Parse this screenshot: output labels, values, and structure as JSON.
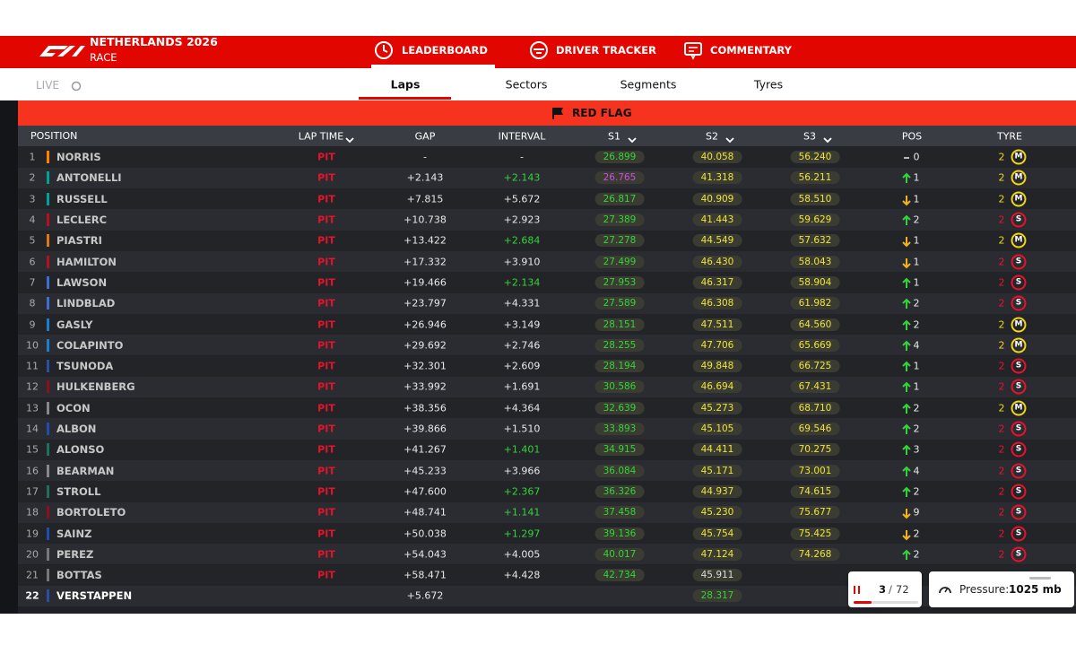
{
  "header": {
    "event": "NETHERLANDS 2026",
    "session": "RACE",
    "tabs": [
      "LEADERBOARD",
      "DRIVER TRACKER",
      "COMMENTARY"
    ]
  },
  "subnav": {
    "live": "LIVE",
    "tabs": [
      "Laps",
      "Sectors",
      "Segments",
      "Tyres"
    ]
  },
  "banner": "RED FLAG",
  "table": {
    "columns": [
      "POSITION",
      "LAP TIME",
      "GAP",
      "INTERVAL",
      "S1",
      "S2",
      "S3",
      "POS",
      "TYRE"
    ],
    "rows": [
      {
        "position": "1",
        "driver": "NORRIS",
        "team_color": "#ff8000",
        "lap_time": "PIT",
        "gap": "-",
        "interval": "-",
        "interval_color": "plain",
        "s1": "26.899",
        "s2": "40.058",
        "s3": "56.240",
        "sector_colors": [
          "green",
          "yellow",
          "yellow"
        ],
        "pos_dir": "same",
        "pos_change": "0",
        "tyre_laps": "2",
        "tyre": "M"
      },
      {
        "position": "2",
        "driver": "ANTONELLI",
        "team_color": "#00a19c",
        "lap_time": "PIT",
        "gap": "+2.143",
        "interval": "+2.143",
        "interval_color": "green",
        "s1": "26.765",
        "s2": "41.318",
        "s3": "56.211",
        "sector_colors": [
          "purple",
          "yellow",
          "yellow"
        ],
        "pos_dir": "up",
        "pos_change": "1",
        "tyre_laps": "2",
        "tyre": "M"
      },
      {
        "position": "3",
        "driver": "RUSSELL",
        "team_color": "#00a19c",
        "lap_time": "PIT",
        "gap": "+7.815",
        "interval": "+5.672",
        "interval_color": "plain",
        "s1": "26.817",
        "s2": "40.909",
        "s3": "58.510",
        "sector_colors": [
          "green",
          "yellow",
          "yellow"
        ],
        "pos_dir": "down",
        "pos_change": "1",
        "tyre_laps": "2",
        "tyre": "M"
      },
      {
        "position": "4",
        "driver": "LECLERC",
        "team_color": "#b5121b",
        "lap_time": "PIT",
        "gap": "+10.738",
        "interval": "+2.923",
        "interval_color": "plain",
        "s1": "27.389",
        "s2": "41.443",
        "s3": "59.629",
        "sector_colors": [
          "green",
          "yellow",
          "yellow"
        ],
        "pos_dir": "up",
        "pos_change": "2",
        "tyre_laps": "2",
        "tyre": "S"
      },
      {
        "position": "5",
        "driver": "PIASTRI",
        "team_color": "#e07a10",
        "lap_time": "PIT",
        "gap": "+13.422",
        "interval": "+2.684",
        "interval_color": "green",
        "s1": "27.278",
        "s2": "44.549",
        "s3": "57.632",
        "sector_colors": [
          "green",
          "yellow",
          "yellow"
        ],
        "pos_dir": "down",
        "pos_change": "1",
        "tyre_laps": "2",
        "tyre": "M"
      },
      {
        "position": "6",
        "driver": "HAMILTON",
        "team_color": "#b5121b",
        "lap_time": "PIT",
        "gap": "+17.332",
        "interval": "+3.910",
        "interval_color": "plain",
        "s1": "27.499",
        "s2": "46.430",
        "s3": "58.043",
        "sector_colors": [
          "green",
          "yellow",
          "yellow"
        ],
        "pos_dir": "down",
        "pos_change": "1",
        "tyre_laps": "2",
        "tyre": "S"
      },
      {
        "position": "7",
        "driver": "LAWSON",
        "team_color": "#3b6fd1",
        "lap_time": "PIT",
        "gap": "+19.466",
        "interval": "+2.134",
        "interval_color": "green",
        "s1": "27.953",
        "s2": "46.317",
        "s3": "58.904",
        "sector_colors": [
          "green",
          "yellow",
          "yellow"
        ],
        "pos_dir": "up",
        "pos_change": "1",
        "tyre_laps": "2",
        "tyre": "S"
      },
      {
        "position": "8",
        "driver": "LINDBLAD",
        "team_color": "#3b6fd1",
        "lap_time": "PIT",
        "gap": "+23.797",
        "interval": "+4.331",
        "interval_color": "plain",
        "s1": "27.589",
        "s2": "46.308",
        "s3": "61.982",
        "sector_colors": [
          "green",
          "yellow",
          "yellow"
        ],
        "pos_dir": "up",
        "pos_change": "2",
        "tyre_laps": "2",
        "tyre": "S"
      },
      {
        "position": "9",
        "driver": "GASLY",
        "team_color": "#1b7fd0",
        "lap_time": "PIT",
        "gap": "+26.946",
        "interval": "+3.149",
        "interval_color": "plain",
        "s1": "28.151",
        "s2": "47.511",
        "s3": "64.560",
        "sector_colors": [
          "green",
          "yellow",
          "yellow"
        ],
        "pos_dir": "up",
        "pos_change": "2",
        "tyre_laps": "2",
        "tyre": "M"
      },
      {
        "position": "10",
        "driver": "COLAPINTO",
        "team_color": "#1b7fd0",
        "lap_time": "PIT",
        "gap": "+29.692",
        "interval": "+2.746",
        "interval_color": "plain",
        "s1": "28.255",
        "s2": "47.706",
        "s3": "65.669",
        "sector_colors": [
          "green",
          "yellow",
          "yellow"
        ],
        "pos_dir": "up",
        "pos_change": "4",
        "tyre_laps": "2",
        "tyre": "M"
      },
      {
        "position": "11",
        "driver": "TSUNODA",
        "team_color": "#2a4fa0",
        "lap_time": "PIT",
        "gap": "+32.301",
        "interval": "+2.609",
        "interval_color": "plain",
        "s1": "28.194",
        "s2": "49.848",
        "s3": "66.725",
        "sector_colors": [
          "green",
          "yellow",
          "yellow"
        ],
        "pos_dir": "up",
        "pos_change": "1",
        "tyre_laps": "2",
        "tyre": "S"
      },
      {
        "position": "12",
        "driver": "HULKENBERG",
        "team_color": "#8a1020",
        "lap_time": "PIT",
        "gap": "+33.992",
        "interval": "+1.691",
        "interval_color": "plain",
        "s1": "30.586",
        "s2": "46.694",
        "s3": "67.431",
        "sector_colors": [
          "green",
          "yellow",
          "yellow"
        ],
        "pos_dir": "up",
        "pos_change": "1",
        "tyre_laps": "2",
        "tyre": "S"
      },
      {
        "position": "13",
        "driver": "OCON",
        "team_color": "#888888",
        "lap_time": "PIT",
        "gap": "+38.356",
        "interval": "+4.364",
        "interval_color": "plain",
        "s1": "32.639",
        "s2": "45.273",
        "s3": "68.710",
        "sector_colors": [
          "green",
          "yellow",
          "yellow"
        ],
        "pos_dir": "up",
        "pos_change": "2",
        "tyre_laps": "2",
        "tyre": "M"
      },
      {
        "position": "14",
        "driver": "ALBON",
        "team_color": "#1e4fb0",
        "lap_time": "PIT",
        "gap": "+39.866",
        "interval": "+1.510",
        "interval_color": "plain",
        "s1": "33.893",
        "s2": "45.105",
        "s3": "69.546",
        "sector_colors": [
          "green",
          "yellow",
          "yellow"
        ],
        "pos_dir": "up",
        "pos_change": "2",
        "tyre_laps": "2",
        "tyre": "S"
      },
      {
        "position": "15",
        "driver": "ALONSO",
        "team_color": "#1f6f5f",
        "lap_time": "PIT",
        "gap": "+41.267",
        "interval": "+1.401",
        "interval_color": "green",
        "s1": "34.915",
        "s2": "44.411",
        "s3": "70.275",
        "sector_colors": [
          "green",
          "yellow",
          "yellow"
        ],
        "pos_dir": "up",
        "pos_change": "3",
        "tyre_laps": "2",
        "tyre": "S"
      },
      {
        "position": "16",
        "driver": "BEARMAN",
        "team_color": "#888888",
        "lap_time": "PIT",
        "gap": "+45.233",
        "interval": "+3.966",
        "interval_color": "plain",
        "s1": "36.084",
        "s2": "45.171",
        "s3": "73.001",
        "sector_colors": [
          "green",
          "yellow",
          "yellow"
        ],
        "pos_dir": "up",
        "pos_change": "4",
        "tyre_laps": "2",
        "tyre": "S"
      },
      {
        "position": "17",
        "driver": "STROLL",
        "team_color": "#1f6f5f",
        "lap_time": "PIT",
        "gap": "+47.600",
        "interval": "+2.367",
        "interval_color": "green",
        "s1": "36.326",
        "s2": "44.937",
        "s3": "74.615",
        "sector_colors": [
          "green",
          "yellow",
          "yellow"
        ],
        "pos_dir": "up",
        "pos_change": "2",
        "tyre_laps": "2",
        "tyre": "S"
      },
      {
        "position": "18",
        "driver": "BORTOLETO",
        "team_color": "#8a1020",
        "lap_time": "PIT",
        "gap": "+48.741",
        "interval": "+1.141",
        "interval_color": "green",
        "s1": "37.458",
        "s2": "45.230",
        "s3": "75.677",
        "sector_colors": [
          "green",
          "yellow",
          "yellow"
        ],
        "pos_dir": "down",
        "pos_change": "9",
        "tyre_laps": "2",
        "tyre": "S"
      },
      {
        "position": "19",
        "driver": "SAINZ",
        "team_color": "#1e4fb0",
        "lap_time": "PIT",
        "gap": "+50.038",
        "interval": "+1.297",
        "interval_color": "green",
        "s1": "39.136",
        "s2": "45.754",
        "s3": "75.425",
        "sector_colors": [
          "green",
          "yellow",
          "yellow"
        ],
        "pos_dir": "down",
        "pos_change": "2",
        "tyre_laps": "2",
        "tyre": "S"
      },
      {
        "position": "20",
        "driver": "PEREZ",
        "team_color": "#777777",
        "lap_time": "PIT",
        "gap": "+54.043",
        "interval": "+4.005",
        "interval_color": "plain",
        "s1": "40.017",
        "s2": "47.124",
        "s3": "74.268",
        "sector_colors": [
          "green",
          "yellow",
          "yellow"
        ],
        "pos_dir": "up",
        "pos_change": "2",
        "tyre_laps": "2",
        "tyre": "S"
      },
      {
        "position": "21",
        "driver": "BOTTAS",
        "team_color": "#777777",
        "lap_time": "PIT",
        "gap": "+58.471",
        "interval": "+4.428",
        "interval_color": "plain",
        "s1": "42.734",
        "s2": "45.911",
        "s3": null,
        "sector_colors": [
          "green",
          "plain",
          "plain"
        ],
        "pos_dir": null,
        "pos_change": null,
        "tyre_laps": null,
        "tyre": null
      },
      {
        "position": "22",
        "driver": "VERSTAPPEN",
        "team_color": "#2a4fa0",
        "lap_time": null,
        "gap": "+5.672",
        "interval": null,
        "interval_color": "plain",
        "s1": null,
        "s2": "28.317",
        "s3": null,
        "sector_colors": [
          "plain",
          "green",
          "plain"
        ],
        "pos_dir": null,
        "pos_change": null,
        "tyre_laps": null,
        "tyre": null
      }
    ]
  },
  "lap_counter": {
    "current": "3",
    "separator": "/",
    "total": "72"
  },
  "weather": {
    "label": "Pressure:",
    "value": "1025 mb"
  }
}
